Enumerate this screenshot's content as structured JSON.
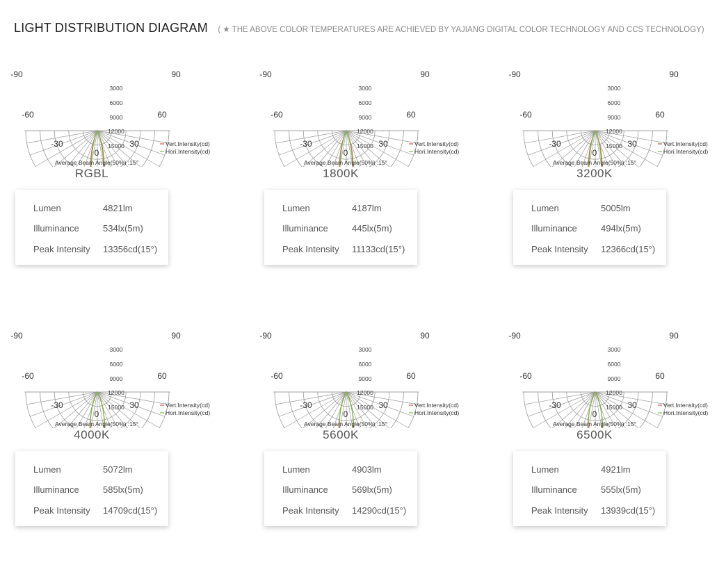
{
  "header": {
    "title": "LIGHT DISTRIBUTION DIAGRAM",
    "note": "( ★ THE ABOVE COLOR TEMPERATURES ARE ACHIEVED BY YAJIANG DIGITAL COLOR TECHNOLOGY AND CCS TECHNOLOGY)"
  },
  "diagram": {
    "angle_labels": [
      "-90",
      "90",
      "-60",
      "60",
      "-30",
      "30",
      "0"
    ],
    "intensity_ticks": [
      "3000",
      "6000",
      "9000",
      "12000",
      "15000"
    ],
    "legend": {
      "vert": "Vert.Intensity(cd)",
      "hori": "Hori.Intensity(cd)"
    },
    "beam_caption": "Average Beam Angle(50%) :15°",
    "colors": {
      "vert": "#d9534f",
      "hori": "#7cbf4a",
      "grid": "#9a9a9a"
    }
  },
  "specs": {
    "lumen": "Lumen",
    "illuminance": "Illuminance",
    "peak": "Peak Intensity"
  },
  "panels": [
    {
      "name": "RGBL",
      "lumen": "4821lm",
      "illuminance": "534lx(5m)",
      "peak": "13356cd(15°)"
    },
    {
      "name": "1800K",
      "lumen": "4187lm",
      "illuminance": "445lx(5m)",
      "peak": "11133cd(15°)"
    },
    {
      "name": "3200K",
      "lumen": "5005lm",
      "illuminance": "494lx(5m)",
      "peak": "12366cd(15°)"
    },
    {
      "name": "4000K",
      "lumen": "5072lm",
      "illuminance": "585lx(5m)",
      "peak": "14709cd(15°)"
    },
    {
      "name": "5600K",
      "lumen": "4903lm",
      "illuminance": "569lx(5m)",
      "peak": "14290cd(15°)"
    },
    {
      "name": "6500K",
      "lumen": "4921lm",
      "illuminance": "555lx(5m)",
      "peak": "13939cd(15°)"
    }
  ]
}
